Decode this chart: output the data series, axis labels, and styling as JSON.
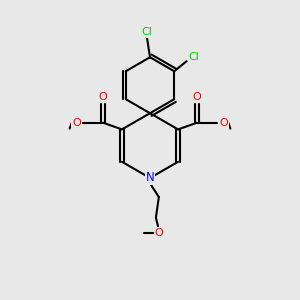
{
  "bg_color": "#e8e8e8",
  "atom_colors": {
    "N": "#0000ff",
    "O": "#ff0000",
    "Cl": "#00cc00"
  },
  "bond_color": "#000000",
  "bond_width": 1.5,
  "figsize": [
    3.0,
    3.0
  ],
  "dpi": 100
}
